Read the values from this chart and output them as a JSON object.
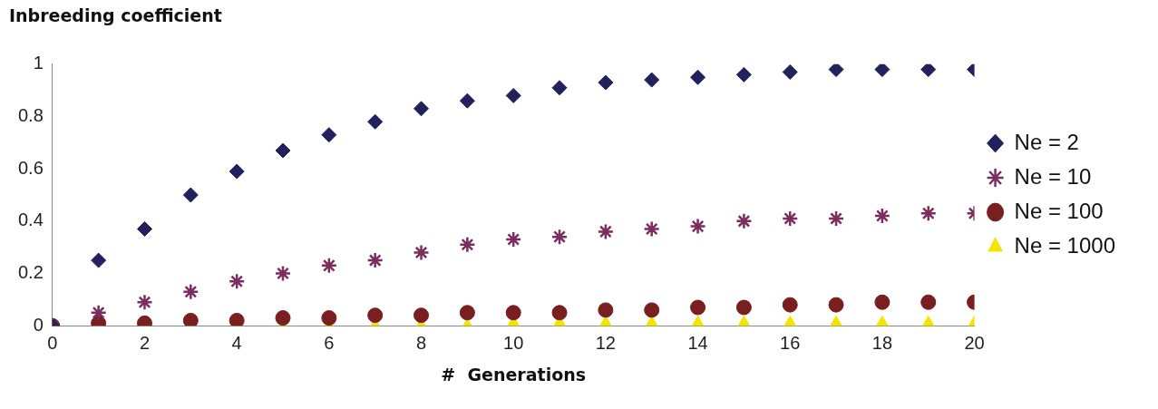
{
  "chart_data": {
    "type": "scatter",
    "ylabel": "Inbreeding coefficient",
    "xlabel": "#  Generations",
    "x": [
      0,
      1,
      2,
      3,
      4,
      5,
      6,
      7,
      8,
      9,
      10,
      11,
      12,
      13,
      14,
      15,
      16,
      17,
      18,
      19,
      20
    ],
    "series": [
      {
        "name": "Ne = 2",
        "color": "#22215e",
        "marker": "diamond",
        "values": [
          0,
          0.25,
          0.37,
          0.5,
          0.59,
          0.67,
          0.73,
          0.78,
          0.83,
          0.86,
          0.88,
          0.91,
          0.93,
          0.94,
          0.95,
          0.96,
          0.97,
          0.98,
          0.98,
          0.98,
          0.98
        ]
      },
      {
        "name": "Ne = 10",
        "color": "#7b2d5e",
        "marker": "cross",
        "values": [
          0,
          0.05,
          0.09,
          0.13,
          0.17,
          0.2,
          0.23,
          0.25,
          0.28,
          0.31,
          0.33,
          0.34,
          0.36,
          0.37,
          0.38,
          0.4,
          0.41,
          0.41,
          0.42,
          0.43,
          0.43
        ]
      },
      {
        "name": "Ne = 100",
        "color": "#7a1f1f",
        "marker": "circle",
        "values": [
          0,
          0.01,
          0.01,
          0.02,
          0.02,
          0.03,
          0.03,
          0.04,
          0.04,
          0.05,
          0.05,
          0.05,
          0.06,
          0.06,
          0.07,
          0.07,
          0.08,
          0.08,
          0.09,
          0.09,
          0.09
        ]
      },
      {
        "name": "Ne = 1000",
        "color": "#f2e600",
        "marker": "triangle",
        "values": [
          0,
          0,
          0,
          0,
          0,
          0,
          0,
          0,
          0,
          0,
          0.01,
          0.01,
          0.01,
          0.01,
          0.01,
          0.01,
          0.01,
          0.01,
          0.01,
          0.01,
          0.01
        ]
      }
    ],
    "xlim": [
      0,
      20
    ],
    "xticks": [
      0,
      2,
      4,
      6,
      8,
      10,
      12,
      14,
      16,
      18,
      20
    ],
    "ylim": [
      0,
      1
    ],
    "yticks": [
      0,
      0.2,
      0.4,
      0.6,
      0.8,
      1
    ],
    "grid": false,
    "legend": "right"
  }
}
